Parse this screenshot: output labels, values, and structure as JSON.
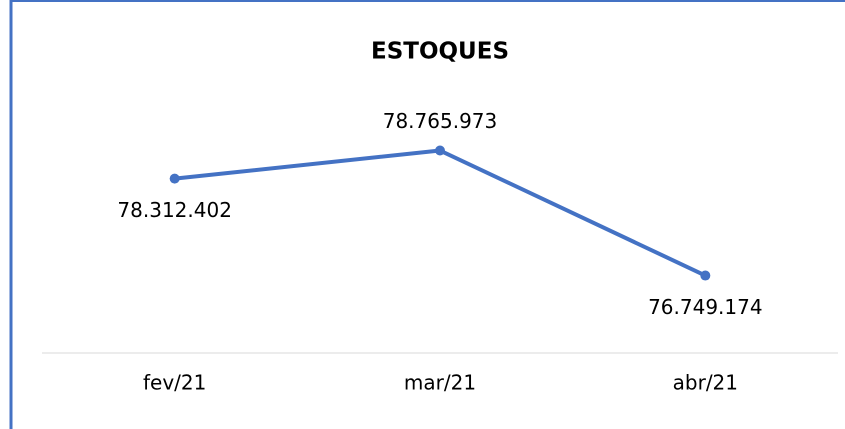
{
  "chart_data": {
    "type": "line",
    "title": "ESTOQUES",
    "categories": [
      "fev/21",
      "mar/21",
      "abr/21"
    ],
    "series": [
      {
        "name": "Estoques",
        "color": "#4472c4",
        "values": [
          78312402,
          78765973,
          76749174
        ],
        "value_labels": [
          "78.312.402",
          "78.765.973",
          "76.749.174"
        ]
      }
    ],
    "ylim": [
      75500000,
      79500000
    ]
  }
}
